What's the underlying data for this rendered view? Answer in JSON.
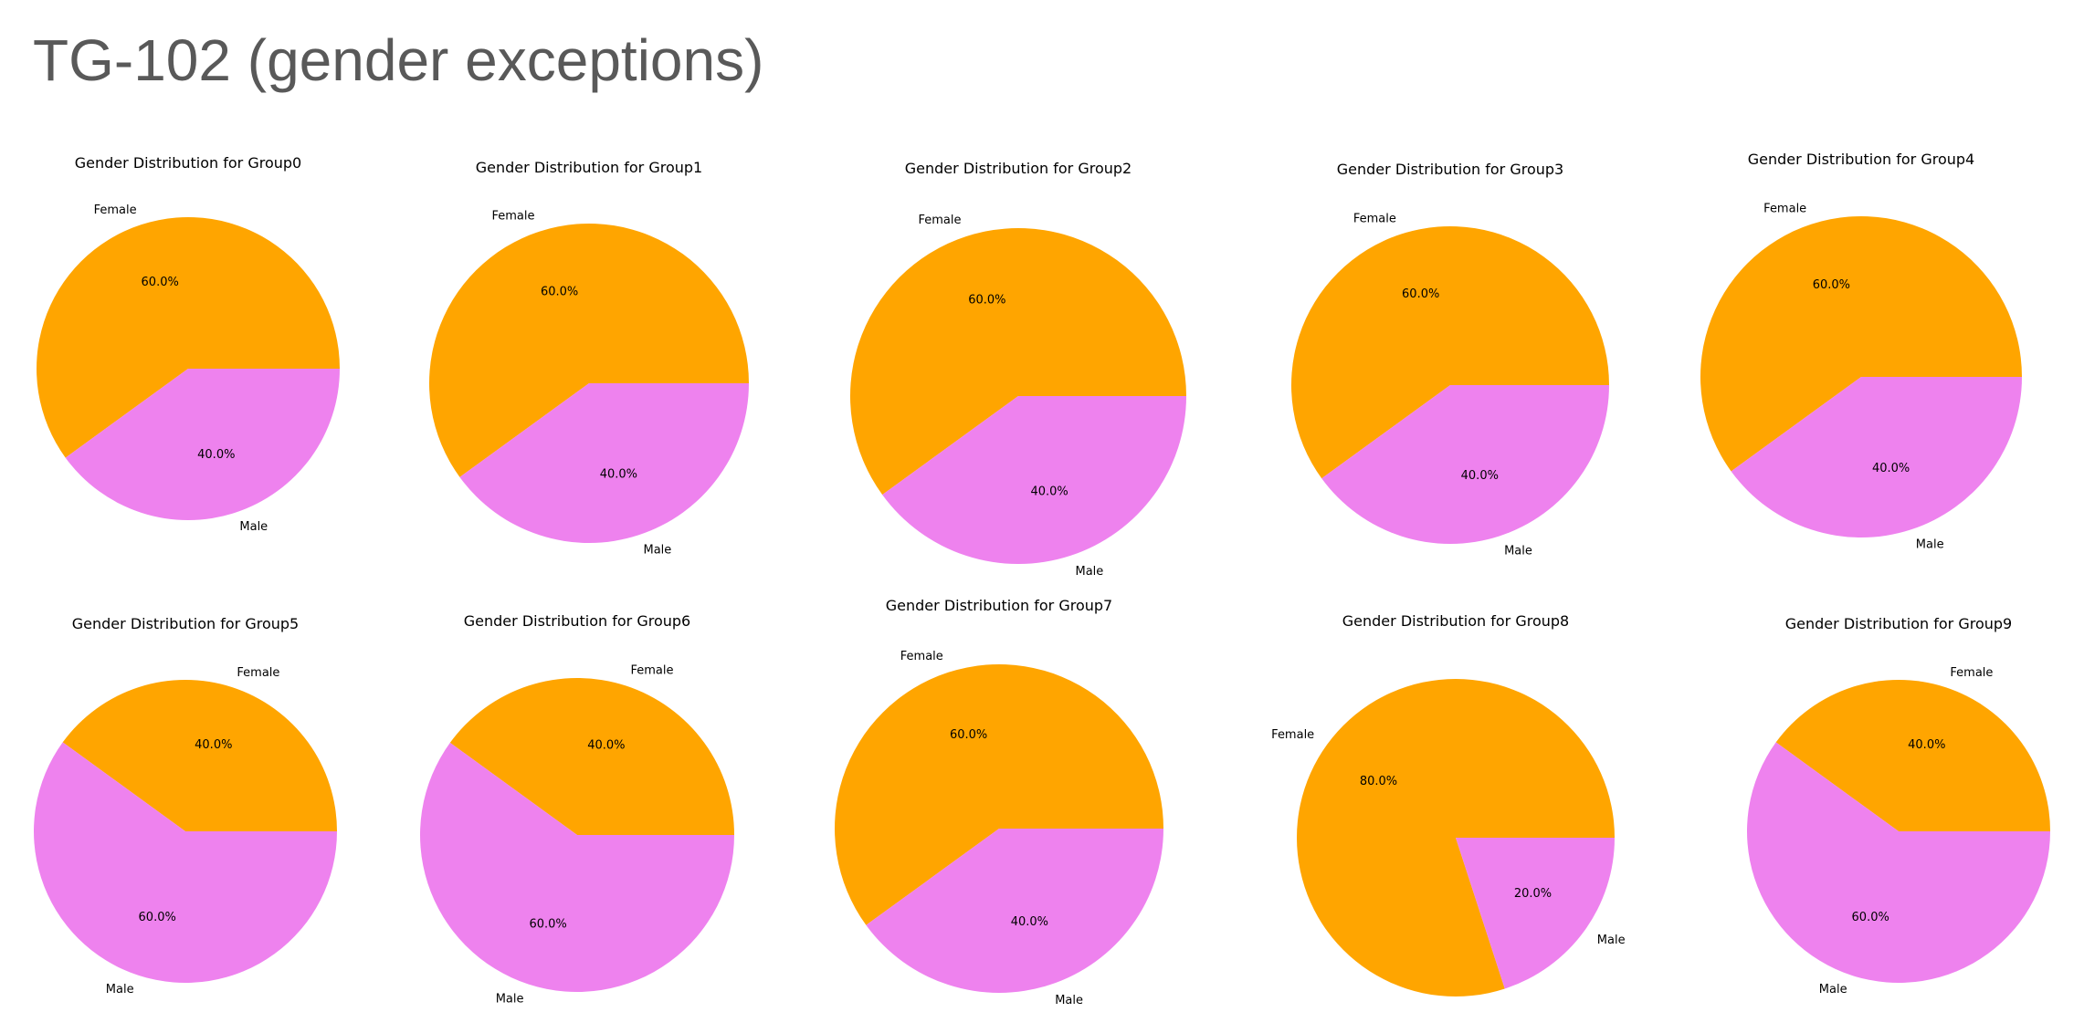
{
  "page": {
    "title": "TG-102 (gender exceptions)"
  },
  "colors": {
    "female": "#FFA500",
    "male": "#EE82EE",
    "title": "#595959"
  },
  "chart_data": [
    {
      "type": "pie",
      "title": "Gender Distribution for Group0",
      "labels": [
        "Female",
        "Male"
      ],
      "values": [
        60,
        40
      ],
      "value_labels": [
        "60.0%",
        "40.0%"
      ]
    },
    {
      "type": "pie",
      "title": "Gender Distribution for Group1",
      "labels": [
        "Female",
        "Male"
      ],
      "values": [
        60,
        40
      ],
      "value_labels": [
        "60.0%",
        "40.0%"
      ]
    },
    {
      "type": "pie",
      "title": "Gender Distribution for Group2",
      "labels": [
        "Female",
        "Male"
      ],
      "values": [
        60,
        40
      ],
      "value_labels": [
        "60.0%",
        "40.0%"
      ]
    },
    {
      "type": "pie",
      "title": "Gender Distribution for Group3",
      "labels": [
        "Female",
        "Male"
      ],
      "values": [
        60,
        40
      ],
      "value_labels": [
        "60.0%",
        "40.0%"
      ]
    },
    {
      "type": "pie",
      "title": "Gender Distribution for Group4",
      "labels": [
        "Female",
        "Male"
      ],
      "values": [
        60,
        40
      ],
      "value_labels": [
        "60.0%",
        "40.0%"
      ]
    },
    {
      "type": "pie",
      "title": "Gender Distribution for Group5",
      "labels": [
        "Female",
        "Male"
      ],
      "values": [
        40,
        60
      ],
      "value_labels": [
        "40.0%",
        "60.0%"
      ]
    },
    {
      "type": "pie",
      "title": "Gender Distribution for Group6",
      "labels": [
        "Female",
        "Male"
      ],
      "values": [
        40,
        60
      ],
      "value_labels": [
        "40.0%",
        "60.0%"
      ]
    },
    {
      "type": "pie",
      "title": "Gender Distribution for Group7",
      "labels": [
        "Female",
        "Male"
      ],
      "values": [
        60,
        40
      ],
      "value_labels": [
        "60.0%",
        "40.0%"
      ]
    },
    {
      "type": "pie",
      "title": "Gender Distribution for Group8",
      "labels": [
        "Female",
        "Male"
      ],
      "values": [
        80,
        20
      ],
      "value_labels": [
        "80.0%",
        "20.0%"
      ]
    },
    {
      "type": "pie",
      "title": "Gender Distribution for Group9",
      "labels": [
        "Female",
        "Male"
      ],
      "values": [
        40,
        60
      ],
      "value_labels": [
        "40.0%",
        "60.0%"
      ]
    }
  ]
}
